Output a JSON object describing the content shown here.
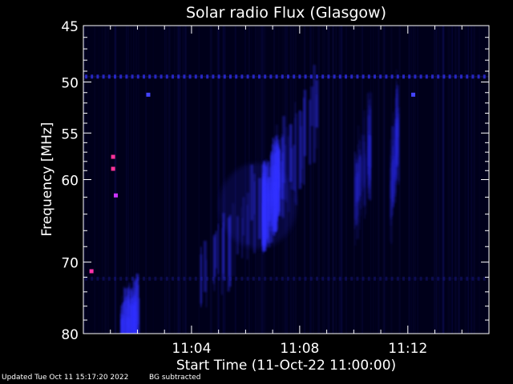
{
  "chart_data": {
    "type": "heatmap",
    "title": "Solar radio Flux (Glasgow)",
    "xlabel": "Start Time (11-Oct-22 11:00:00)",
    "ylabel": "Frequency [MHz]",
    "x_unit": "minutes after 11:00:00",
    "xlim": [
      0,
      15
    ],
    "ylim": [
      45,
      80
    ],
    "y_scale": "log",
    "y_inverted": true,
    "x_ticks": [
      {
        "value": 4,
        "label": "11:04"
      },
      {
        "value": 8,
        "label": "11:08"
      },
      {
        "value": 12,
        "label": "11:12"
      }
    ],
    "y_ticks": [
      {
        "value": 45,
        "label": "45"
      },
      {
        "value": 50,
        "label": "50"
      },
      {
        "value": 55,
        "label": "55"
      },
      {
        "value": 60,
        "label": "60"
      },
      {
        "value": 70,
        "label": "70"
      },
      {
        "value": 80,
        "label": "80"
      }
    ],
    "features": [
      {
        "kind": "burst",
        "t_start": 4.3,
        "t_end": 8.6,
        "f_high": 53,
        "f_low": 73,
        "intensity": 0.85
      },
      {
        "kind": "burst",
        "t_start": 6.6,
        "t_end": 7.2,
        "f_high": 60,
        "f_low": 64,
        "intensity": 1.0
      },
      {
        "kind": "burst",
        "t_start": 10.0,
        "t_end": 10.6,
        "f_high": 56,
        "f_low": 62,
        "intensity": 0.35
      },
      {
        "kind": "burst",
        "t_start": 11.3,
        "t_end": 11.6,
        "f_high": 54,
        "f_low": 63,
        "intensity": 0.3
      },
      {
        "kind": "rfi_line",
        "freq": 49.5,
        "intensity": 0.7
      },
      {
        "kind": "rfi_line",
        "freq": 72.2,
        "intensity": 0.2
      },
      {
        "kind": "rfi_spot",
        "t": 0.3,
        "freq": 71.2,
        "color": "#ff33aa"
      },
      {
        "kind": "rfi_spot",
        "t": 1.1,
        "freq": 57.5,
        "color": "#ff3399"
      },
      {
        "kind": "rfi_spot",
        "t": 1.1,
        "freq": 58.8,
        "color": "#ff3399"
      },
      {
        "kind": "rfi_spot",
        "t": 1.2,
        "freq": 61.8,
        "color": "#cc33ff"
      },
      {
        "kind": "rfi_spot",
        "t": 2.4,
        "freq": 51.2,
        "color": "#4444ff"
      },
      {
        "kind": "rfi_spot",
        "t": 12.2,
        "freq": 51.2,
        "color": "#4444ff"
      },
      {
        "kind": "burst",
        "t_start": 1.3,
        "t_end": 2.0,
        "f_high": 77,
        "f_low": 80,
        "intensity": 0.9
      }
    ],
    "colors": {
      "background": "#000000",
      "low": "#000018",
      "high": "#3333ff",
      "axes": "#ffffff"
    }
  },
  "footer": {
    "updated": "Updated Tue Oct 11 15:17:20 2022",
    "bg": "BG subtracted"
  }
}
